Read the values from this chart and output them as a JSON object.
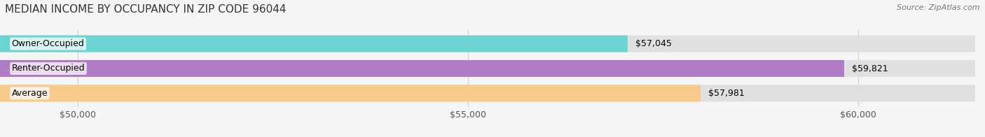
{
  "title": "MEDIAN INCOME BY OCCUPANCY IN ZIP CODE 96044",
  "source": "Source: ZipAtlas.com",
  "categories": [
    "Owner-Occupied",
    "Renter-Occupied",
    "Average"
  ],
  "values": [
    57045,
    59821,
    57981
  ],
  "labels": [
    "$57,045",
    "$59,821",
    "$57,981"
  ],
  "bar_colors": [
    "#6dd4d4",
    "#b07cc6",
    "#f9c98a"
  ],
  "xlim_min": 49000,
  "xlim_max": 61500,
  "xticks": [
    50000,
    55000,
    60000
  ],
  "xtick_labels": [
    "$50,000",
    "$55,000",
    "$60,000"
  ],
  "background_color": "#f5f5f5",
  "bar_bg_color": "#e0e0e0",
  "title_fontsize": 11,
  "source_fontsize": 8,
  "label_fontsize": 9,
  "tick_fontsize": 9
}
